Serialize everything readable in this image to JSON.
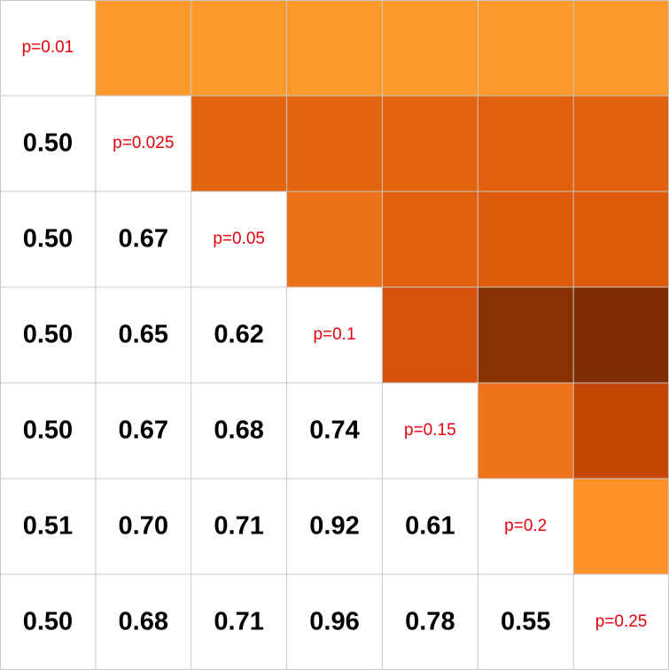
{
  "chart_data": {
    "type": "heatmap",
    "title": "",
    "xlabel": "",
    "ylabel": "",
    "diagonal_labels": [
      "p=0.01",
      "p=0.025",
      "p=0.05",
      "p=0.1",
      "p=0.15",
      "p=0.2",
      "p=0.25"
    ],
    "lower_triangle_values": [
      [],
      [
        "0.50"
      ],
      [
        "0.50",
        "0.67"
      ],
      [
        "0.50",
        "0.65",
        "0.62"
      ],
      [
        "0.50",
        "0.67",
        "0.68",
        "0.74"
      ],
      [
        "0.51",
        "0.70",
        "0.71",
        "0.92",
        "0.61"
      ],
      [
        "0.50",
        "0.68",
        "0.71",
        "0.96",
        "0.78",
        "0.55"
      ]
    ],
    "upper_triangle_colors": [
      [
        "#fd982a",
        "#fd982a",
        "#fd982a",
        "#fd982a",
        "#fd982a",
        "#fd982a"
      ],
      [
        "#e3640f",
        "#e3640f",
        "#e3640f",
        "#e15f0d",
        "#e15f0d"
      ],
      [
        "#ee7219",
        "#e15f0d",
        "#dd5a0b",
        "#dd5a0b"
      ],
      [
        "#d8530a",
        "#8a3104",
        "#7f2b04"
      ],
      [
        "#ef731a",
        "#c34605"
      ],
      [
        "#fd9228"
      ]
    ]
  }
}
